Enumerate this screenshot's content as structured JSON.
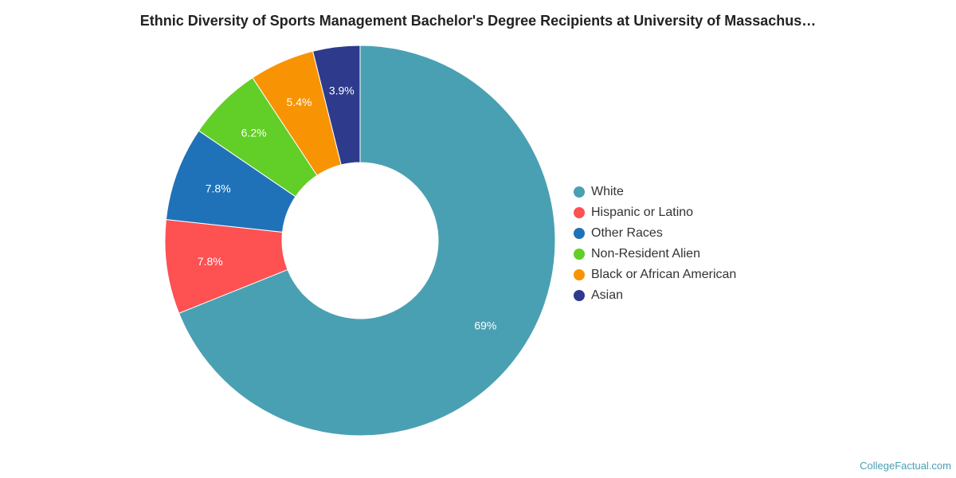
{
  "credit": "CollegeFactual.com",
  "chart_data": {
    "type": "pie",
    "variant": "donut",
    "title": "Ethnic Diversity of Sports Management Bachelor's Degree Recipients at University of Massachus…",
    "legend_position": "right",
    "series": [
      {
        "name": "White",
        "value": 69,
        "label": "69%",
        "color": "#4aa0b3"
      },
      {
        "name": "Hispanic or Latino",
        "value": 7.8,
        "label": "7.8%",
        "color": "#fe5152"
      },
      {
        "name": "Other Races",
        "value": 7.8,
        "label": "7.8%",
        "color": "#2072b8"
      },
      {
        "name": "Non-Resident Alien",
        "value": 6.2,
        "label": "6.2%",
        "color": "#62ce28"
      },
      {
        "name": "Black or African American",
        "value": 5.4,
        "label": "5.4%",
        "color": "#f89404"
      },
      {
        "name": "Asian",
        "value": 3.9,
        "label": "3.9%",
        "color": "#2e3a8c"
      }
    ]
  }
}
